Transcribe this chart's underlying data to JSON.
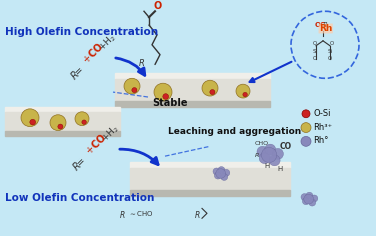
{
  "bg_color": "#c5e8f5",
  "high_olefin_label": "High Olefin Concentration",
  "low_olefin_label": "Low Olefin Concentration",
  "stable_label": "Stable",
  "leaching_label": "Leaching and aggregation",
  "legend_osi": "O-Si",
  "legend_rh3p": "Rh³⁺",
  "legend_rh0": "Rh°",
  "color_osi": "#cc2222",
  "color_rh3": "#c8b44a",
  "color_rh0_light": "#8888bb",
  "color_rh0_dark": "#666699",
  "tube_top": "#f0efea",
  "tube_mid": "#e0dfd8",
  "tube_bot": "#b8b8b0",
  "arrow_blue": "#1133cc",
  "text_blue": "#1133bb",
  "text_dark": "#111111",
  "co_red": "#cc2200",
  "dashed_blue": "#3366dd"
}
